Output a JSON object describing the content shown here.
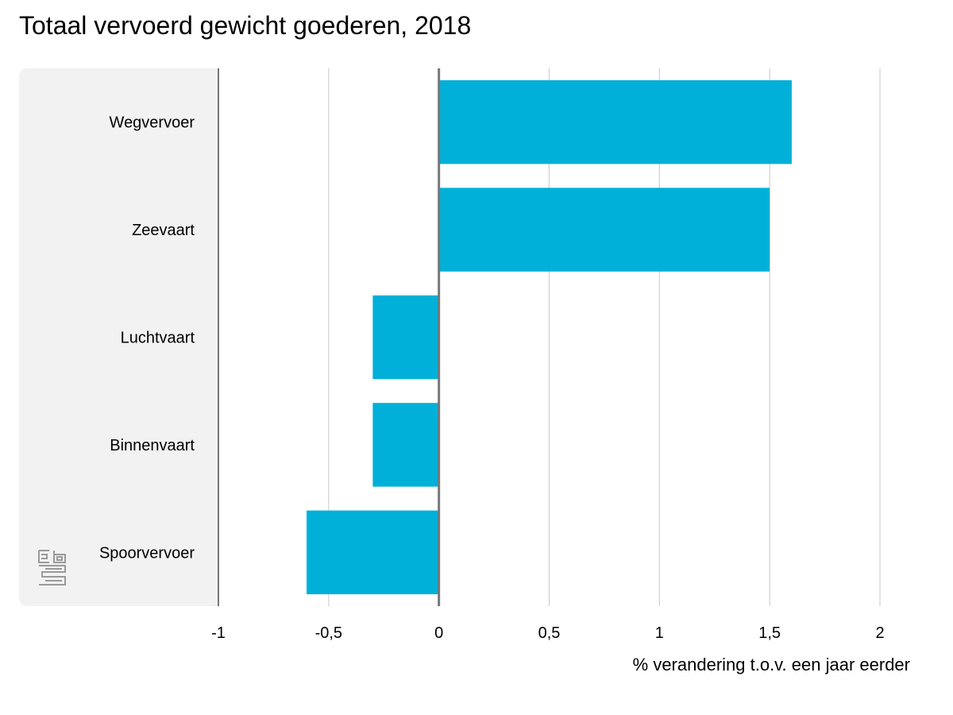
{
  "chart_data": {
    "type": "bar",
    "orientation": "horizontal",
    "title": "Totaal vervoerd gewicht goederen, 2018",
    "xlabel": "% verandering t.o.v. een jaar eerder",
    "ylabel": "",
    "categories": [
      "Wegvervoer",
      "Zeevaart",
      "Luchtvaart",
      "Binnenvaart",
      "Spoorvervoer"
    ],
    "values": [
      1.6,
      1.5,
      -0.3,
      -0.3,
      -0.6
    ],
    "xlim": [
      -1,
      2
    ],
    "xticks": [
      -1,
      -0.5,
      0,
      0.5,
      1,
      1.5,
      2
    ],
    "xtick_labels": [
      "-1",
      "-0,5",
      "0",
      "0,5",
      "1",
      "1,5",
      "2"
    ],
    "grid": true,
    "bar_color": "#00b0d8",
    "grid_color": "#c8c8c8",
    "axis_color": "#777777",
    "panel_color": "#f2f2f2"
  },
  "logo": {
    "icon": "cbs-logo-icon"
  }
}
